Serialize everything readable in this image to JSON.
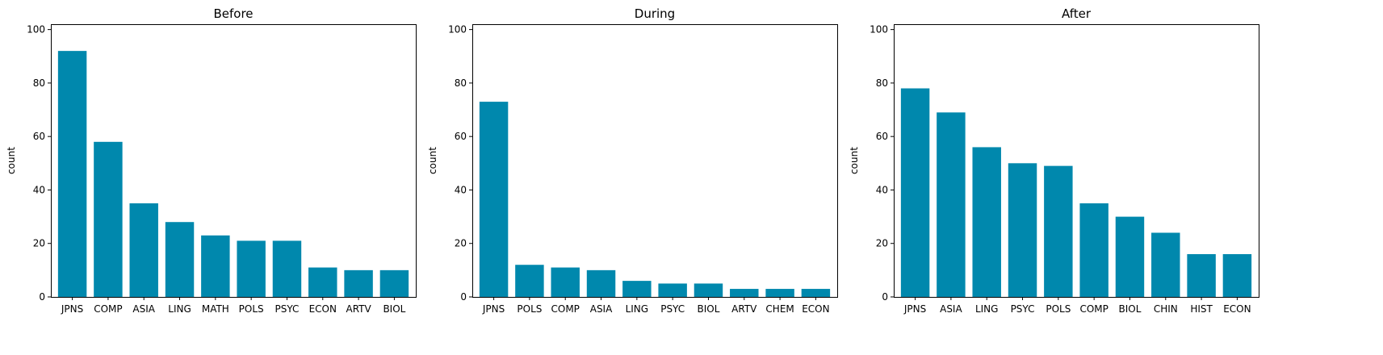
{
  "style": {
    "bar_color": "#0088AD"
  },
  "chart_data": [
    {
      "type": "bar",
      "title": "Before",
      "xlabel": "",
      "ylabel": "count",
      "ylim": [
        0,
        102
      ],
      "yticks": [
        0,
        20,
        40,
        60,
        80,
        100
      ],
      "grid": false,
      "categories": [
        "JPNS",
        "COMP",
        "ASIA",
        "LING",
        "MATH",
        "POLS",
        "PSYC",
        "ECON",
        "ARTV",
        "BIOL"
      ],
      "values": [
        92,
        58,
        35,
        28,
        23,
        21,
        21,
        11,
        10,
        10
      ]
    },
    {
      "type": "bar",
      "title": "During",
      "xlabel": "",
      "ylabel": "count",
      "ylim": [
        0,
        102
      ],
      "yticks": [
        0,
        20,
        40,
        60,
        80,
        100
      ],
      "grid": false,
      "categories": [
        "JPNS",
        "POLS",
        "COMP",
        "ASIA",
        "LING",
        "PSYC",
        "BIOL",
        "ARTV",
        "CHEM",
        "ECON"
      ],
      "values": [
        73,
        12,
        11,
        10,
        6,
        5,
        5,
        3,
        3,
        3
      ]
    },
    {
      "type": "bar",
      "title": "After",
      "xlabel": "",
      "ylabel": "count",
      "ylim": [
        0,
        102
      ],
      "yticks": [
        0,
        20,
        40,
        60,
        80,
        100
      ],
      "grid": false,
      "categories": [
        "JPNS",
        "ASIA",
        "LING",
        "PSYC",
        "POLS",
        "COMP",
        "BIOL",
        "CHIN",
        "HIST",
        "ECON"
      ],
      "values": [
        78,
        69,
        56,
        50,
        49,
        35,
        30,
        24,
        16,
        16
      ]
    }
  ]
}
